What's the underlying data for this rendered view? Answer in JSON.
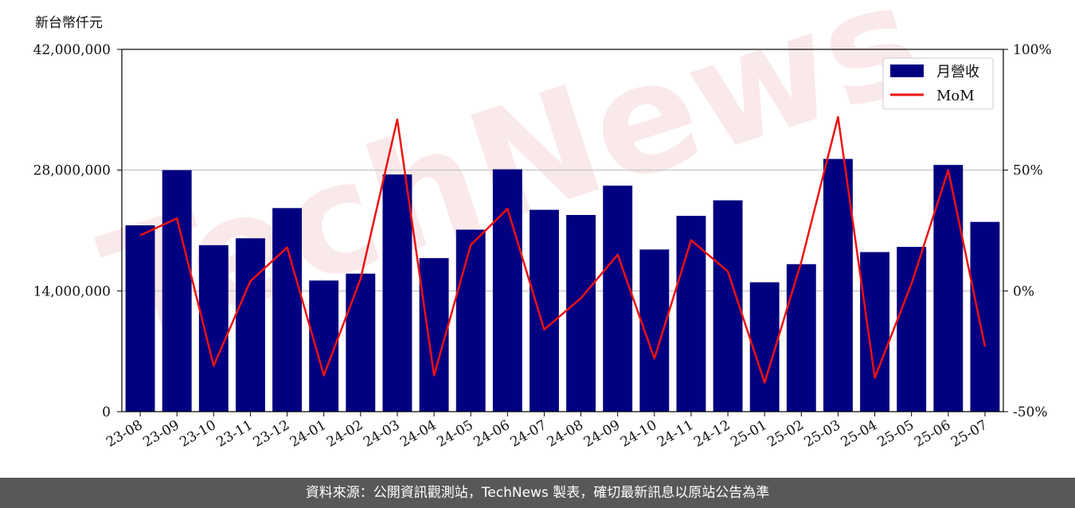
{
  "footer": {
    "text": "資料來源：公開資訊觀測站，TechNews 製表，確切最新訊息以原站公告為準"
  },
  "watermark": {
    "text": "TechNews"
  },
  "colors": {
    "bar": "#000080",
    "line": "#ee1111",
    "grid": "#cccccc"
  },
  "chart_data": {
    "type": "bar",
    "title": "",
    "ylabel": "新台幣仟元",
    "categories": [
      "23-08",
      "23-09",
      "23-10",
      "23-11",
      "23-12",
      "24-01",
      "24-02",
      "24-03",
      "24-04",
      "24-05",
      "24-06",
      "24-07",
      "24-08",
      "24-09",
      "24-10",
      "24-11",
      "24-12",
      "25-01",
      "25-02",
      "25-03",
      "25-04",
      "25-05",
      "25-06",
      "25-07"
    ],
    "ylim": [
      0,
      42000000
    ],
    "yticks": [
      "0",
      "14,000,000",
      "28,000,000",
      "42,000,000"
    ],
    "y2lim": [
      -50,
      100
    ],
    "y2ticks": [
      "-50%",
      "0%",
      "50%",
      "100%"
    ],
    "grid": "horizontal",
    "legend_position": "top-right",
    "series": [
      {
        "name": "月營收",
        "type": "bar",
        "axis": "left",
        "values": [
          21600000,
          28000000,
          19300000,
          20100000,
          23600000,
          15200000,
          16000000,
          27500000,
          17800000,
          21100000,
          28100000,
          23400000,
          22800000,
          26200000,
          18800000,
          22700000,
          24500000,
          15000000,
          17100000,
          29300000,
          18500000,
          19100000,
          28600000,
          22000000
        ]
      },
      {
        "name": "MoM",
        "type": "line",
        "axis": "right",
        "values": [
          23,
          30,
          -31,
          4,
          18,
          -35,
          5,
          71,
          -35,
          19,
          34,
          -16,
          -3,
          15,
          -28,
          21,
          8,
          -38,
          12,
          72,
          -36,
          3,
          50,
          -23
        ]
      }
    ]
  }
}
